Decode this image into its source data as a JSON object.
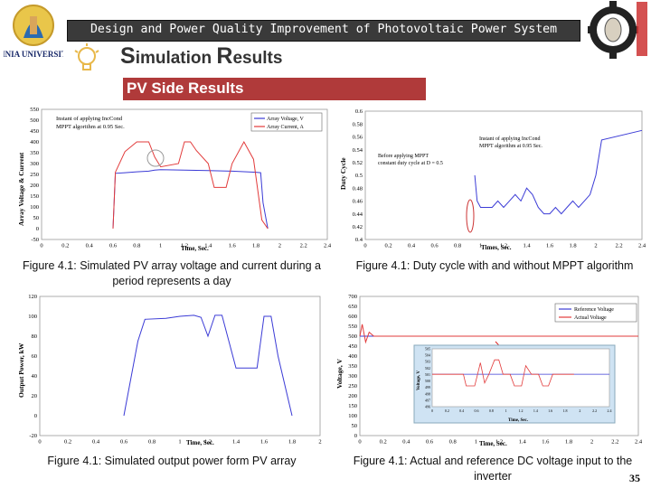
{
  "header": {
    "logo_left_text": "MINIA UNIVERSITY",
    "banner_title": "Design and Power Quality Improvement of Photovoltaic Power System",
    "subtitle_first": "S",
    "subtitle_first_rest": "imulation ",
    "subtitle_second": "R",
    "subtitle_second_rest": "esults",
    "section_label": "PV Side Results"
  },
  "figures": {
    "fig1_caption": "Figure 4.1: Simulated PV array voltage and current during a period represents a day",
    "fig2_caption": "Figure 4.1: Duty cycle with and without MPPT algorithm",
    "fig3_caption": "Figure 4.1: Simulated output power form PV array",
    "fig4_caption": "Figure 4.1: Actual and reference DC voltage input to the inverter"
  },
  "page_number": "35",
  "colors": {
    "banner_bg": "#3a3a3a",
    "section_bg": "#b03a3a",
    "series_blue": "#3b3bd6",
    "series_red": "#e23b3b"
  },
  "chart_data": [
    {
      "type": "line",
      "ylabel": "Array Voltage & Current",
      "xlabel": "Time, Sec.",
      "xlim": [
        0,
        2.4
      ],
      "ylim": [
        -50,
        550
      ],
      "x_ticks": [
        "0",
        "0.2",
        "0.4",
        "0.6",
        "0.8",
        "1",
        "1.2",
        "1.4",
        "1.6",
        "1.8",
        "2",
        "2.2",
        "2.4"
      ],
      "y_ticks": [
        "-50",
        "0",
        "50",
        "100",
        "150",
        "200",
        "250",
        "300",
        "350",
        "400",
        "450",
        "500",
        "550"
      ],
      "annotation": [
        "Instant of applying IncCond",
        "MPPT algorithm at 0.95 Sec."
      ],
      "series": [
        {
          "name": "Array Voltage, V",
          "x": [
            0.6,
            0.62,
            0.7,
            0.8,
            0.9,
            0.95,
            1.0,
            1.2,
            1.4,
            1.6,
            1.8,
            1.84,
            1.86,
            1.9
          ],
          "y": [
            0,
            255,
            258,
            262,
            265,
            270,
            272,
            270,
            268,
            265,
            260,
            258,
            120,
            0
          ]
        },
        {
          "name": "Array Current, A",
          "x": [
            0.6,
            0.62,
            0.7,
            0.8,
            0.9,
            0.95,
            1.0,
            1.15,
            1.2,
            1.25,
            1.3,
            1.4,
            1.45,
            1.55,
            1.6,
            1.7,
            1.78,
            1.85,
            1.9
          ],
          "y": [
            0,
            260,
            355,
            400,
            400,
            330,
            285,
            300,
            400,
            400,
            360,
            300,
            190,
            190,
            300,
            400,
            320,
            40,
            0
          ]
        }
      ]
    },
    {
      "type": "line",
      "ylabel": "Duty Cycle",
      "xlabel": "Times, Sec.",
      "xlim": [
        0,
        2.4
      ],
      "ylim": [
        0.4,
        0.6
      ],
      "x_ticks": [
        "0",
        "0.2",
        "0.4",
        "0.6",
        "0.8",
        "1",
        "1.2",
        "1.4",
        "1.6",
        "1.8",
        "2",
        "2.2",
        "2.4"
      ],
      "y_ticks": [
        "0.4",
        "0.42",
        "0.44",
        "0.46",
        "0.48",
        "0.5",
        "0.52",
        "0.54",
        "0.56",
        "0.58",
        "0.6"
      ],
      "annotations": [
        [
          "Instant of applying IncCond",
          "MPPT algorithm at 0.95 Sec."
        ],
        [
          "Before applying MPPT",
          "constant duty cycle at D = 0.5"
        ]
      ],
      "series": [
        {
          "name": "Duty Cycle",
          "x": [
            0.95,
            0.97,
            1.0,
            1.1,
            1.15,
            1.2,
            1.25,
            1.3,
            1.35,
            1.4,
            1.45,
            1.5,
            1.55,
            1.6,
            1.65,
            1.7,
            1.75,
            1.8,
            1.85,
            1.9,
            1.95,
            2.0,
            2.05,
            2.4
          ],
          "y": [
            0.5,
            0.46,
            0.45,
            0.45,
            0.46,
            0.45,
            0.46,
            0.47,
            0.46,
            0.48,
            0.47,
            0.45,
            0.44,
            0.44,
            0.45,
            0.44,
            0.45,
            0.46,
            0.45,
            0.46,
            0.47,
            0.5,
            0.555,
            0.57
          ]
        }
      ]
    },
    {
      "type": "line",
      "ylabel": "Output Power, kW",
      "xlabel": "Time, Sec.",
      "xlim": [
        0,
        2
      ],
      "ylim": [
        -20,
        120
      ],
      "x_ticks": [
        "0",
        "0.2",
        "0.4",
        "0.6",
        "0.8",
        "1",
        "1.2",
        "1.4",
        "1.6",
        "1.8",
        "2"
      ],
      "y_ticks": [
        "-20",
        "0",
        "20",
        "40",
        "60",
        "80",
        "100",
        "120"
      ],
      "series": [
        {
          "name": "Output Power",
          "x": [
            0.6,
            0.7,
            0.75,
            0.9,
            1.0,
            1.1,
            1.15,
            1.2,
            1.25,
            1.3,
            1.4,
            1.45,
            1.55,
            1.6,
            1.65,
            1.7,
            1.8
          ],
          "y": [
            0,
            75,
            97,
            98,
            100,
            101,
            99,
            80,
            101,
            101,
            48,
            48,
            48,
            100,
            100,
            60,
            0
          ]
        }
      ]
    },
    {
      "type": "line",
      "ylabel": "Voltage, V",
      "xlabel": "Time, Sec.",
      "xlim": [
        0,
        2.4
      ],
      "ylim": [
        0,
        700
      ],
      "x_ticks": [
        "0",
        "0.2",
        "0.4",
        "0.6",
        "0.8",
        "1",
        "1.2",
        "1.4",
        "1.6",
        "1.8",
        "2",
        "2.2",
        "2.4"
      ],
      "y_ticks": [
        "0",
        "50",
        "100",
        "150",
        "200",
        "250",
        "300",
        "350",
        "400",
        "450",
        "500",
        "550",
        "600",
        "650",
        "700"
      ],
      "series": [
        {
          "name": "Reference Voltage",
          "x": [
            0,
            2.4
          ],
          "y": [
            500,
            500
          ]
        },
        {
          "name": "Actual Voltage",
          "x": [
            0,
            0.02,
            0.05,
            0.08,
            0.12,
            2.4
          ],
          "y": [
            500,
            560,
            470,
            520,
            500,
            500
          ]
        }
      ],
      "inset": {
        "ylabel": "Voltage, V",
        "xlabel": "Time, Sec.",
        "x_ticks": [
          "0",
          "0.2",
          "0.4",
          "0.6",
          "0.8",
          "1",
          "1.2",
          "1.4",
          "1.6",
          "1.8",
          "2",
          "2.2",
          "2.4"
        ],
        "y_ticks": [
          "496",
          "497",
          "498",
          "499",
          "500",
          "501",
          "502",
          "503",
          "504",
          "505"
        ]
      }
    }
  ]
}
